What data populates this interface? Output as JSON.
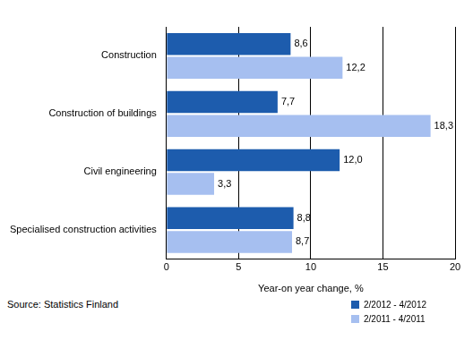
{
  "chart_data": {
    "type": "bar",
    "orientation": "horizontal",
    "categories": [
      "Construction",
      "Construction of buildings",
      "Civil engineering",
      "Specialised construction activities"
    ],
    "series": [
      {
        "name": "2/2012 - 4/2012",
        "color": "#1d5cad",
        "values": [
          8.6,
          7.7,
          12.0,
          8.8
        ],
        "value_labels": [
          "8,6",
          "7,7",
          "12,0",
          "8,8"
        ]
      },
      {
        "name": "2/2011 - 4/2011",
        "color": "#a6bff0",
        "values": [
          12.2,
          18.3,
          3.3,
          8.7
        ],
        "value_labels": [
          "12,2",
          "18,3",
          "3,3",
          "8,7"
        ]
      }
    ],
    "x_label": "Year-on year change, %",
    "xlim": [
      0,
      20
    ],
    "xticks": [
      0,
      5,
      10,
      15,
      20
    ],
    "grid": true,
    "data_labels": true,
    "legend": "bottom right",
    "annotations": [
      "Source: Statistics Finland"
    ]
  }
}
